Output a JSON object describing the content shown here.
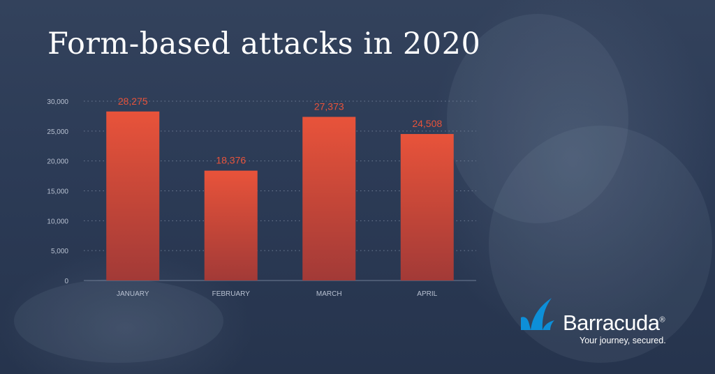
{
  "title": "Form-based attacks in 2020",
  "brand": {
    "name": "Barracuda",
    "registered": "®",
    "tagline": "Your journey, secured.",
    "logo_icon": "shark-fin-icon",
    "logo_color": "#0d8fd8"
  },
  "colors": {
    "background": "#2b3a55",
    "bar_top": "#e8533a",
    "bar_bottom": "#a23a37",
    "value_label": "#e8533a",
    "axis_text": "#b8c1d1",
    "grid": "#6f7d95"
  },
  "chart_data": {
    "type": "bar",
    "title": "Form-based attacks in 2020",
    "xlabel": "",
    "ylabel": "",
    "categories": [
      "JANUARY",
      "FEBRUARY",
      "MARCH",
      "APRIL"
    ],
    "values": [
      28275,
      18376,
      27373,
      24508
    ],
    "value_labels": [
      "28,275",
      "18,376",
      "27,373",
      "24,508"
    ],
    "ylim": [
      0,
      30000
    ],
    "yticks": [
      0,
      5000,
      10000,
      15000,
      20000,
      25000,
      30000
    ],
    "ytick_labels": [
      "0",
      "5,000",
      "10,000",
      "15,000",
      "20,000",
      "25,000",
      "30,000"
    ],
    "grid": true,
    "grid_style": "dotted",
    "legend": "none"
  }
}
